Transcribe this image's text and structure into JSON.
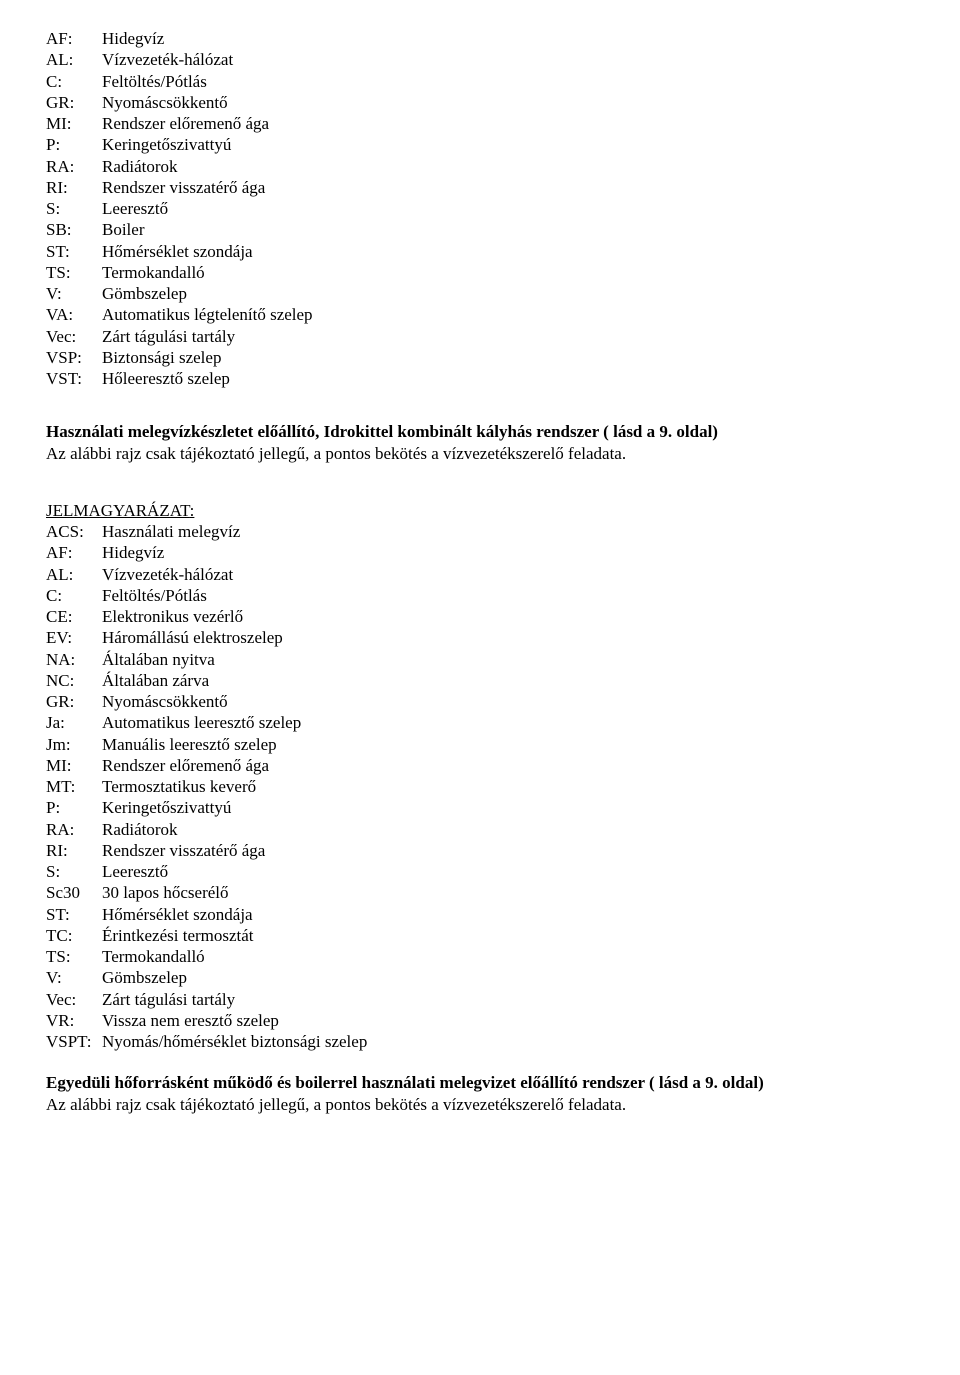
{
  "list1": [
    {
      "code": "AF:",
      "text": "Hidegvíz"
    },
    {
      "code": "AL:",
      "text": "Vízvezeték-hálózat"
    },
    {
      "code": "C:",
      "text": "Feltöltés/Pótlás"
    },
    {
      "code": "GR:",
      "text": "Nyomáscsökkentő"
    },
    {
      "code": "MI:",
      "text": "Rendszer előremenő ága"
    },
    {
      "code": "P:",
      "text": "Keringetőszivattyú"
    },
    {
      "code": "RA:",
      "text": "Radiátorok"
    },
    {
      "code": "RI:",
      "text": "Rendszer visszatérő ága"
    },
    {
      "code": "S:",
      "text": "Leeresztő"
    },
    {
      "code": "SB:",
      "text": "Boiler"
    },
    {
      "code": "ST:",
      "text": "Hőmérséklet szondája"
    },
    {
      "code": "TS:",
      "text": "Termokandalló"
    },
    {
      "code": "V:",
      "text": "Gömbszelep"
    },
    {
      "code": "VA:",
      "text": "Automatikus légtelenítő szelep"
    },
    {
      "code": "Vec:",
      "text": "Zárt tágulási tartály"
    },
    {
      "code": "VSP:",
      "text": "Biztonsági szelep"
    },
    {
      "code": "VST:",
      "text": "Hőleeresztő szelep"
    }
  ],
  "section1": {
    "title": "Használati melegvízkészletet előállító, Idrokittel kombinált kályhás rendszer ( lásd a 9. oldal)",
    "note": "Az alábbi rajz csak tájékoztató jellegű, a pontos bekötés a vízvezetékszerelő feladata."
  },
  "legend": {
    "heading": "JELMAGYARÁZAT",
    "colon": ":",
    "items": [
      {
        "code": "ACS:",
        "text": "Használati melegvíz"
      },
      {
        "code": "AF:",
        "text": "Hidegvíz"
      },
      {
        "code": "AL:",
        "text": "Vízvezeték-hálózat"
      },
      {
        "code": "C:",
        "text": "Feltöltés/Pótlás"
      },
      {
        "code": "CE:",
        "text": "Elektronikus vezérlő"
      },
      {
        "code": "EV:",
        "text": "Háromállású elektroszelep"
      },
      {
        "code": "NA:",
        "text": "Általában nyitva"
      },
      {
        "code": "NC:",
        "text": "Általában zárva"
      },
      {
        "code": "GR:",
        "text": "Nyomáscsökkentő"
      },
      {
        "code": "Ja:",
        "text": "Automatikus leeresztő szelep"
      },
      {
        "code": "Jm:",
        "text": "Manuális leeresztő szelep"
      },
      {
        "code": "MI:",
        "text": "Rendszer előremenő ága"
      },
      {
        "code": "MT:",
        "text": "Termosztatikus keverő"
      },
      {
        "code": "P:",
        "text": "Keringetőszivattyú"
      },
      {
        "code": "RA:",
        "text": "Radiátorok"
      },
      {
        "code": "RI:",
        "text": "Rendszer visszatérő ága"
      },
      {
        "code": "S:",
        "text": "Leeresztő"
      },
      {
        "code": "Sc30",
        "text": "30 lapos hőcserélő"
      },
      {
        "code": "ST:",
        "text": "Hőmérséklet szondája"
      },
      {
        "code": "TC:",
        "text": "Érintkezési termosztát"
      },
      {
        "code": "TS:",
        "text": "Termokandalló"
      },
      {
        "code": "V:",
        "text": "Gömbszelep"
      },
      {
        "code": "Vec:",
        "text": "Zárt tágulási tartály"
      },
      {
        "code": "VR:",
        "text": "Vissza nem eresztő szelep"
      },
      {
        "code": "VSPT:",
        "text": "Nyomás/hőmérséklet biztonsági szelep"
      }
    ]
  },
  "section2": {
    "title": "Egyedüli hőforrásként működő és boilerrel használati melegvizet előállító rendszer ( lásd a 9. oldal)",
    "note": "Az alábbi rajz csak tájékoztató jellegű, a pontos bekötés a vízvezetékszerelő feladata."
  }
}
